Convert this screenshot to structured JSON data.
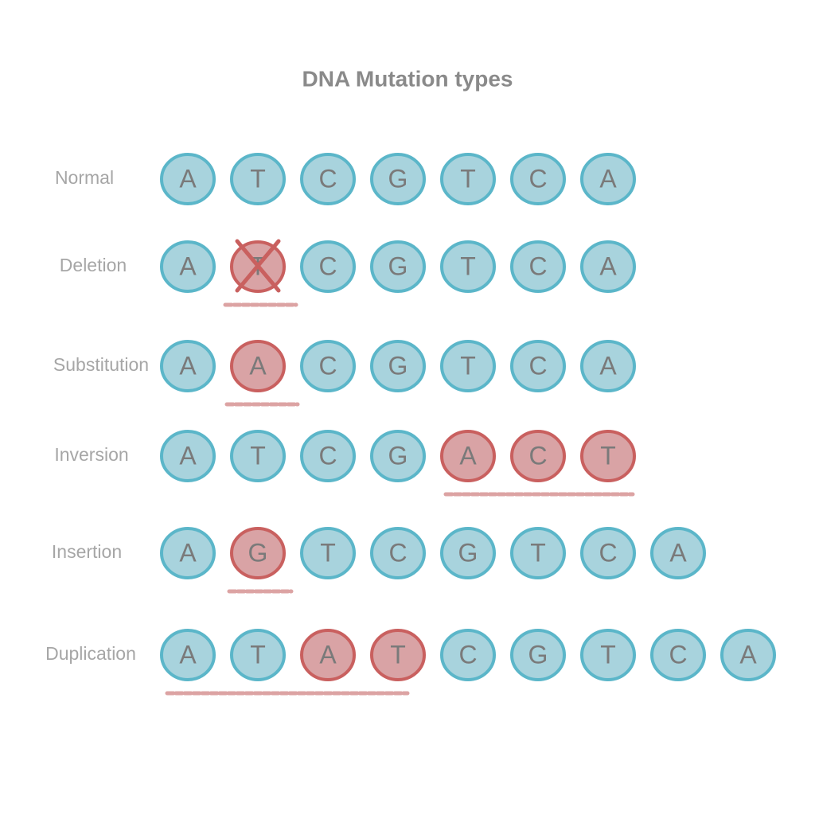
{
  "title": "DNA Mutation types",
  "rows": [
    {
      "label": "Normal",
      "bases": [
        {
          "letter": "A",
          "color": "blue"
        },
        {
          "letter": "T",
          "color": "blue"
        },
        {
          "letter": "C",
          "color": "blue"
        },
        {
          "letter": "G",
          "color": "blue"
        },
        {
          "letter": "T",
          "color": "blue"
        },
        {
          "letter": "C",
          "color": "blue"
        },
        {
          "letter": "A",
          "color": "blue"
        }
      ]
    },
    {
      "label": "Deletion",
      "bases": [
        {
          "letter": "A",
          "color": "blue"
        },
        {
          "letter": "T",
          "color": "red",
          "crossed": true
        },
        {
          "letter": "C",
          "color": "blue"
        },
        {
          "letter": "G",
          "color": "blue"
        },
        {
          "letter": "T",
          "color": "blue"
        },
        {
          "letter": "C",
          "color": "blue"
        },
        {
          "letter": "A",
          "color": "blue"
        }
      ]
    },
    {
      "label": "Substitution",
      "bases": [
        {
          "letter": "A",
          "color": "blue"
        },
        {
          "letter": "A",
          "color": "red"
        },
        {
          "letter": "C",
          "color": "blue"
        },
        {
          "letter": "G",
          "color": "blue"
        },
        {
          "letter": "T",
          "color": "blue"
        },
        {
          "letter": "C",
          "color": "blue"
        },
        {
          "letter": "A",
          "color": "blue"
        }
      ]
    },
    {
      "label": "Inversion",
      "bases": [
        {
          "letter": "A",
          "color": "blue"
        },
        {
          "letter": "T",
          "color": "blue"
        },
        {
          "letter": "C",
          "color": "blue"
        },
        {
          "letter": "G",
          "color": "blue"
        },
        {
          "letter": "A",
          "color": "red"
        },
        {
          "letter": "C",
          "color": "red"
        },
        {
          "letter": "T",
          "color": "red"
        }
      ]
    },
    {
      "label": "Insertion",
      "bases": [
        {
          "letter": "A",
          "color": "blue"
        },
        {
          "letter": "G",
          "color": "red"
        },
        {
          "letter": "T",
          "color": "blue"
        },
        {
          "letter": "C",
          "color": "blue"
        },
        {
          "letter": "G",
          "color": "blue"
        },
        {
          "letter": "T",
          "color": "blue"
        },
        {
          "letter": "C",
          "color": "blue"
        },
        {
          "letter": "A",
          "color": "blue"
        }
      ]
    },
    {
      "label": "Duplication",
      "bases": [
        {
          "letter": "A",
          "color": "blue"
        },
        {
          "letter": "T",
          "color": "blue"
        },
        {
          "letter": "A",
          "color": "red"
        },
        {
          "letter": "T",
          "color": "red"
        },
        {
          "letter": "C",
          "color": "blue"
        },
        {
          "letter": "G",
          "color": "blue"
        },
        {
          "letter": "T",
          "color": "blue"
        },
        {
          "letter": "C",
          "color": "blue"
        },
        {
          "letter": "A",
          "color": "blue"
        }
      ]
    }
  ]
}
